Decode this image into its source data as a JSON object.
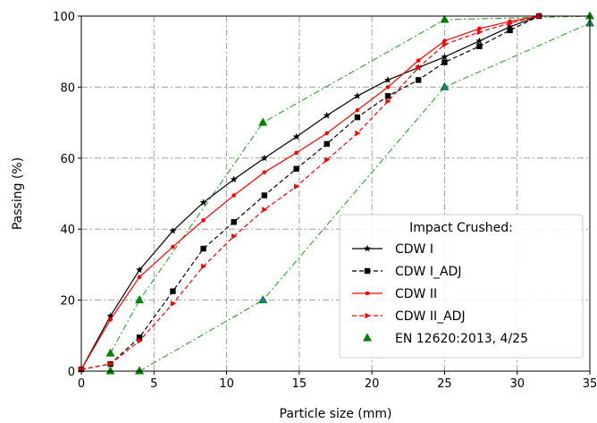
{
  "chart_data": {
    "type": "line",
    "xlabel": "Particle size (mm)",
    "ylabel": "Passing (%)",
    "xlim": [
      0,
      35
    ],
    "ylim": [
      0,
      100
    ],
    "xticks": [
      0,
      5,
      10,
      15,
      20,
      25,
      30,
      35
    ],
    "yticks": [
      0,
      20,
      40,
      60,
      80,
      100
    ],
    "grid": true,
    "legend": {
      "title": "Impact Crushed:",
      "placement": "bottom-right"
    },
    "series": [
      {
        "name": "CDW I",
        "color": "#000000",
        "line": "solid",
        "marker": "star",
        "x": [
          0,
          2,
          4,
          6.3,
          8.4,
          10.5,
          12.6,
          14.8,
          16.9,
          19,
          21.1,
          23.2,
          25,
          27.4,
          29.5,
          31.5
        ],
        "y": [
          0.5,
          15.5,
          28.5,
          39.5,
          47.5,
          54,
          60,
          66,
          72,
          77.5,
          82,
          85.5,
          88.5,
          93,
          97,
          100
        ]
      },
      {
        "name": "CDW I_ADJ",
        "color": "#000000",
        "line": "dashed",
        "marker": "square",
        "x": [
          0,
          2,
          4,
          6.3,
          8.4,
          10.5,
          12.6,
          14.8,
          16.9,
          19,
          21.1,
          23.2,
          25,
          27.4,
          29.5,
          31.5
        ],
        "y": [
          0.5,
          2,
          9.5,
          22.5,
          34.5,
          42,
          49.5,
          57,
          64,
          71.5,
          77.5,
          82,
          87,
          91.5,
          96,
          100
        ]
      },
      {
        "name": "CDW II",
        "color": "#ff0000",
        "line": "solid",
        "marker": "dot",
        "x": [
          0,
          2,
          4,
          6.3,
          8.4,
          10.5,
          12.6,
          14.8,
          16.9,
          19,
          21.1,
          23.2,
          25,
          27.4,
          29.5,
          31.5
        ],
        "y": [
          0.5,
          14.5,
          26.5,
          35,
          42.5,
          49.5,
          56,
          61.5,
          67,
          73.5,
          80,
          87.5,
          93,
          96.5,
          98.5,
          100
        ]
      },
      {
        "name": "CDW II_ADJ",
        "color": "#ff0000",
        "line": "dashed",
        "marker": "triangle-right",
        "x": [
          0,
          2,
          4,
          6.3,
          8.4,
          10.5,
          12.6,
          14.8,
          16.9,
          19,
          21.1,
          23.2,
          25,
          27.4,
          29.5,
          31.5
        ],
        "y": [
          0.5,
          2,
          8.5,
          19,
          29.5,
          38,
          45.5,
          52,
          59.5,
          67,
          76,
          85.5,
          92,
          95.5,
          98,
          100
        ]
      }
    ],
    "envelope": {
      "name": "EN 12620:2013, 4/25",
      "color": "#008000",
      "line_color": "#2ca02c",
      "line": "dashdot",
      "marker": "triangle-up",
      "lower": {
        "x": [
          4,
          12.5,
          25,
          35
        ],
        "y": [
          0,
          20,
          80,
          98
        ]
      },
      "upper": {
        "x": [
          2,
          4,
          12.5,
          25,
          35
        ],
        "y": [
          5,
          20,
          70,
          99,
          100
        ]
      },
      "extra_points": {
        "x": [
          2,
          4
        ],
        "y": [
          0,
          0
        ]
      }
    }
  }
}
